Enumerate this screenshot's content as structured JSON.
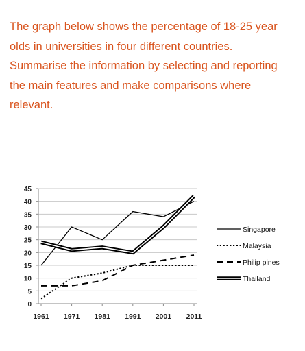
{
  "prompt": {
    "lines": [
      "The graph below shows the percentage of 18-25 year",
      "olds in universities in four different countries.",
      "Summarise the information by selecting and reporting",
      "the main features and make comparisons where",
      "relevant."
    ]
  },
  "colors": {
    "prompt_text": "#d9541e",
    "series": "#000000",
    "grid": "#c8c8c8"
  },
  "chart_data": {
    "type": "line",
    "x": [
      1961,
      1971,
      1981,
      1991,
      2001,
      2011
    ],
    "xticks": [
      "1961",
      "1971",
      "1981",
      "1991",
      "2001",
      "2011"
    ],
    "ylim": [
      0,
      45
    ],
    "yticks": [
      0,
      5,
      10,
      15,
      20,
      25,
      30,
      35,
      40,
      45
    ],
    "grid": true,
    "legend_position": "right",
    "series": [
      {
        "name": "Singapore",
        "style": "solid",
        "values": [
          15,
          30,
          25,
          36,
          34,
          40
        ]
      },
      {
        "name": "Malaysia",
        "style": "dotted",
        "values": [
          2,
          10,
          12,
          15,
          15,
          15
        ]
      },
      {
        "name": "Philippines",
        "style": "dashed",
        "values": [
          7,
          7,
          9,
          15,
          17,
          19
        ]
      },
      {
        "name": "Thailand",
        "style": "thick",
        "values": [
          24,
          21,
          22,
          20,
          30,
          42
        ]
      }
    ],
    "legend_labels": [
      "Singapore",
      "Malaysia",
      "Philip pines",
      "Thailand"
    ]
  }
}
